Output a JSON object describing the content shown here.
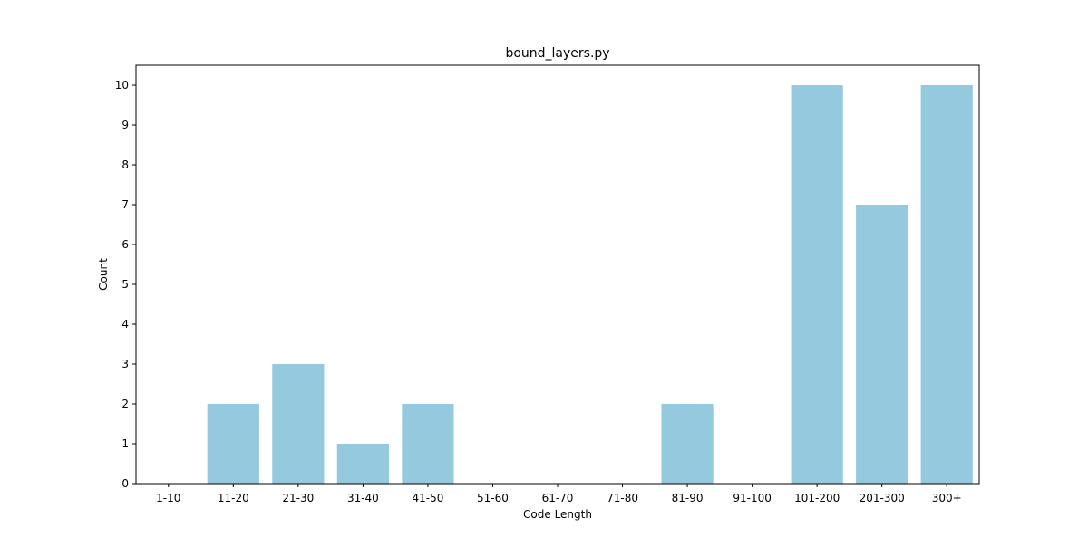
{
  "chart_data": {
    "type": "bar",
    "title": "bound_layers.py",
    "xlabel": "Code Length",
    "ylabel": "Count",
    "categories": [
      "1-10",
      "11-20",
      "21-30",
      "31-40",
      "41-50",
      "51-60",
      "61-70",
      "71-80",
      "81-90",
      "91-100",
      "101-200",
      "201-300",
      "300+"
    ],
    "values": [
      0,
      2,
      3,
      1,
      2,
      0,
      0,
      0,
      2,
      0,
      10,
      7,
      10
    ],
    "yticks": [
      0,
      1,
      2,
      3,
      4,
      5,
      6,
      7,
      8,
      9,
      10
    ],
    "ylim": [
      0,
      10.5
    ],
    "grid": false,
    "legend": "none",
    "colors": {
      "bar": "#95c9de"
    }
  }
}
